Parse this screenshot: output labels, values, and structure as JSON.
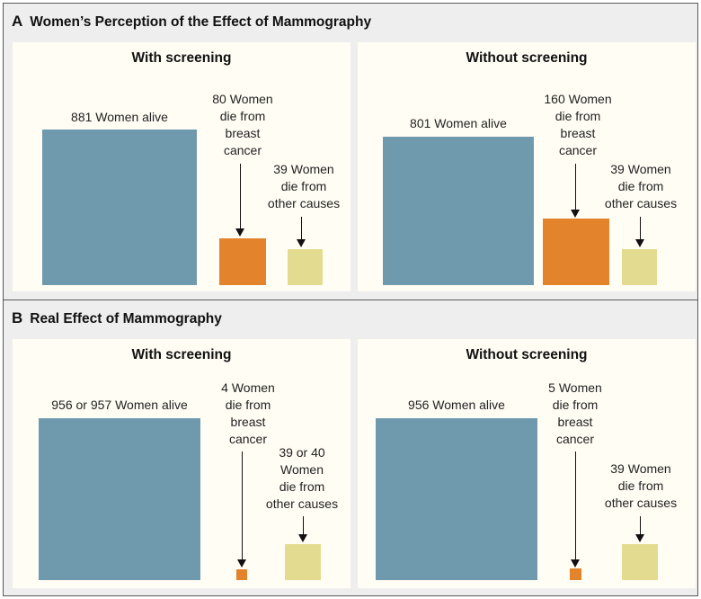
{
  "panel_a": {
    "letter": "A",
    "title": "Women’s Perception of the Effect of Mammography",
    "with_screening": {
      "title": "With screening",
      "alive_label": "881 Women alive",
      "cancer_label": [
        "80 Women",
        "die from",
        "breast",
        "cancer"
      ],
      "other_label": [
        "39 Women",
        "die from",
        "other causes"
      ]
    },
    "without_screening": {
      "title": "Without screening",
      "alive_label": "801 Women alive",
      "cancer_label": [
        "160 Women",
        "die from",
        "breast",
        "cancer"
      ],
      "other_label": [
        "39 Women",
        "die from",
        "other causes"
      ]
    }
  },
  "panel_b": {
    "letter": "B",
    "title": "Real Effect of Mammography",
    "with_screening": {
      "title": "With screening",
      "alive_label": "956 or 957 Women alive",
      "cancer_label": [
        "4 Women",
        "die from",
        "breast",
        "cancer"
      ],
      "other_label": [
        "39 or 40",
        "Women",
        "die from",
        "other causes"
      ]
    },
    "without_screening": {
      "title": "Without screening",
      "alive_label": "956 Women alive",
      "cancer_label": [
        "5 Women",
        "die from",
        "breast",
        "cancer"
      ],
      "other_label": [
        "39 Women",
        "die from",
        "other causes"
      ]
    }
  },
  "colors": {
    "alive": "#6f9aae",
    "breast_cancer": "#e3832b",
    "other_causes": "#e3dc90",
    "background": "#efeeef",
    "subpanel": "#fffdf4"
  }
}
